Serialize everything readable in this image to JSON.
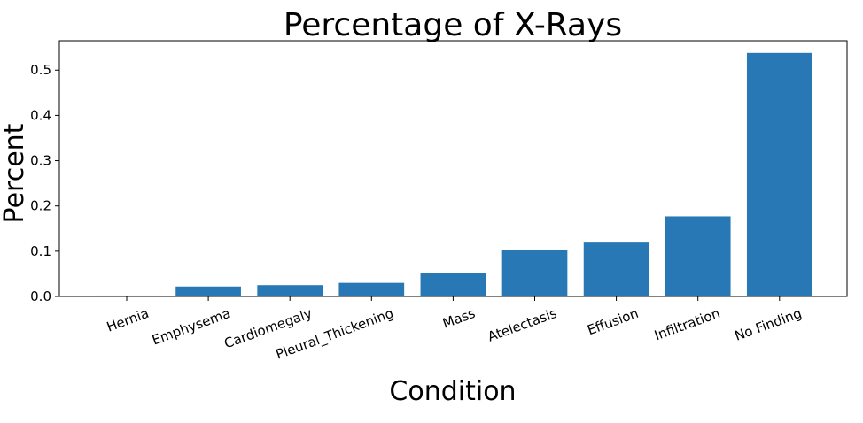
{
  "chart_data": {
    "type": "bar",
    "title": "Percentage of X-Rays",
    "xlabel": "Condition",
    "ylabel": "Percent",
    "categories": [
      "Hernia",
      "Emphysema",
      "Cardiomegaly",
      "Pleural_Thickening",
      "Mass",
      "Atelectasis",
      "Effusion",
      "Infiltration",
      "No Finding"
    ],
    "values": [
      0.002,
      0.022,
      0.025,
      0.03,
      0.052,
      0.103,
      0.119,
      0.177,
      0.538
    ],
    "ylim": [
      0,
      0.565
    ],
    "yticks": [
      0.0,
      0.1,
      0.2,
      0.3,
      0.4,
      0.5
    ],
    "ytick_labels": [
      "0.0",
      "0.1",
      "0.2",
      "0.3",
      "0.4",
      "0.5"
    ],
    "bar_color": "#2878b5",
    "grid": false,
    "legend": null
  }
}
